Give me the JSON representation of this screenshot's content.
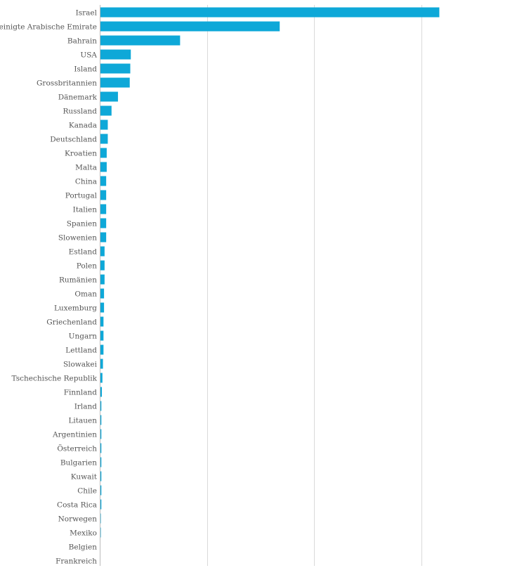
{
  "chart_data": {
    "type": "bar",
    "orientation": "horizontal",
    "title": "",
    "xlabel": "",
    "ylabel": "",
    "categories": [
      "Israel",
      "Vereinigte Arabische Emirate",
      "Bahrain",
      "USA",
      "Island",
      "Grossbritannien",
      "Dänemark",
      "Russland",
      "Kanada",
      "Deutschland",
      "Kroatien",
      "Malta",
      "China",
      "Portugal",
      "Italien",
      "Spanien",
      "Slowenien",
      "Estland",
      "Polen",
      "Rumänien",
      "Oman",
      "Luxemburg",
      "Griechenland",
      "Ungarn",
      "Lettland",
      "Slowakei",
      "Tschechische Republik",
      "Finnland",
      "Irland",
      "Litauen",
      "Argentinien",
      "Österreich",
      "Bulgarien",
      "Kuwait",
      "Chile",
      "Costa Rica",
      "Norwegen",
      "Mexiko",
      "Belgien",
      "Frankreich"
    ],
    "values": [
      3.17,
      1.68,
      0.75,
      0.29,
      0.285,
      0.28,
      0.17,
      0.11,
      0.075,
      0.075,
      0.065,
      0.065,
      0.06,
      0.06,
      0.06,
      0.06,
      0.06,
      0.045,
      0.045,
      0.045,
      0.04,
      0.04,
      0.035,
      0.035,
      0.035,
      0.03,
      0.025,
      0.02,
      0.015,
      0.015,
      0.015,
      0.015,
      0.015,
      0.015,
      0.015,
      0.015,
      0.01,
      0.01,
      0.0,
      0.0
    ],
    "xlim": [
      0,
      4
    ],
    "gridlines_x": [
      1,
      2,
      3
    ],
    "grid": true,
    "legend": "none",
    "bar_color": "#0ea8d8",
    "grid_color": "#d9d9d9",
    "axis_color": "#bbbbbb",
    "label_color": "#555555"
  }
}
